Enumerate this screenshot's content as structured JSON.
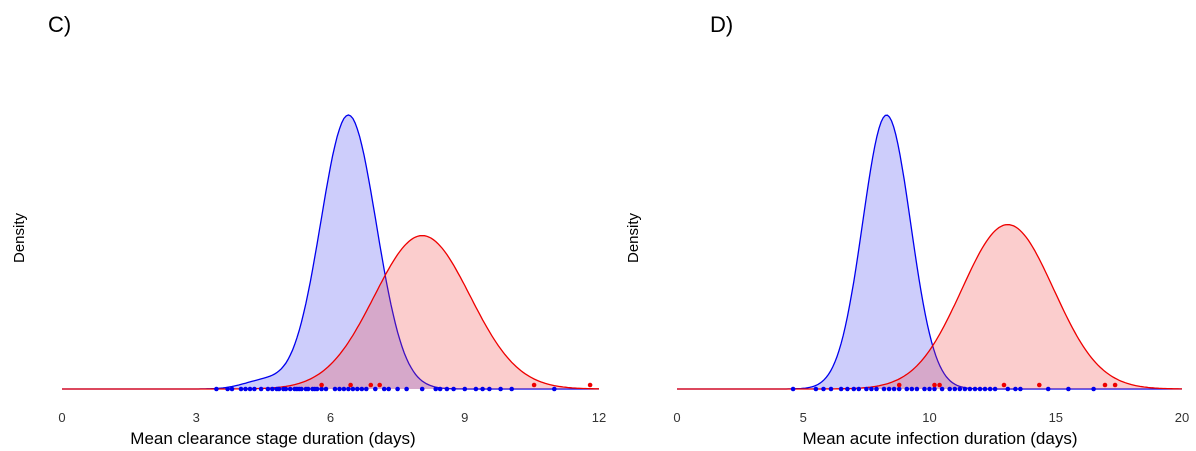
{
  "chart_data": [
    {
      "panel": "C)",
      "type": "area",
      "xlabel": "Mean clearance stage duration (days)",
      "ylabel": "Density",
      "xlim": [
        0,
        12
      ],
      "xticks": [
        0,
        3,
        6,
        9,
        12
      ],
      "grid": false,
      "series": [
        {
          "color": "#0000ee",
          "fill": "rgba(60,60,240,0.26)",
          "curve": "normal",
          "mean": 6.4,
          "sd": 0.62,
          "peak": 1.0,
          "shoulder": {
            "mean": 4.5,
            "sd": 0.45,
            "peak": 0.03
          },
          "points": [
            3.45,
            3.7,
            3.8,
            4.0,
            4.1,
            4.2,
            4.3,
            4.45,
            4.6,
            4.7,
            4.8,
            4.85,
            4.95,
            5.0,
            5.1,
            5.2,
            5.25,
            5.3,
            5.35,
            5.45,
            5.5,
            5.6,
            5.65,
            5.7,
            5.8,
            5.9,
            6.1,
            6.2,
            6.3,
            6.4,
            6.5,
            6.6,
            6.7,
            6.8,
            7.0,
            7.2,
            7.3,
            7.5,
            7.7,
            8.05,
            8.35,
            8.45,
            8.6,
            8.75,
            9.0,
            9.25,
            9.4,
            9.55,
            9.8,
            10.05,
            11.0
          ]
        },
        {
          "color": "#ee0000",
          "fill": "rgba(240,60,60,0.26)",
          "curve": "normal",
          "mean": 8.05,
          "sd": 1.07,
          "peak": 0.56,
          "points": [
            5.8,
            6.45,
            6.9,
            7.1,
            10.55,
            11.8
          ]
        }
      ]
    },
    {
      "panel": "D)",
      "type": "area",
      "xlabel": "Mean acute infection duration (days)",
      "ylabel": "Density",
      "xlim": [
        0,
        20
      ],
      "xticks": [
        0,
        5,
        10,
        15,
        20
      ],
      "grid": false,
      "series": [
        {
          "color": "#0000ee",
          "fill": "rgba(60,60,240,0.26)",
          "curve": "normal",
          "mean": 8.3,
          "sd": 0.95,
          "peak": 1.0,
          "points": [
            4.6,
            5.5,
            5.8,
            6.1,
            6.5,
            6.75,
            7.0,
            7.2,
            7.5,
            7.7,
            7.9,
            8.2,
            8.4,
            8.6,
            8.8,
            9.1,
            9.3,
            9.5,
            9.8,
            10.0,
            10.2,
            10.5,
            10.8,
            11.0,
            11.2,
            11.4,
            11.6,
            11.8,
            12.0,
            12.2,
            12.4,
            12.6,
            13.1,
            13.4,
            13.6,
            14.7,
            15.5,
            16.5
          ]
        },
        {
          "color": "#ee0000",
          "fill": "rgba(240,60,60,0.26)",
          "curve": "normal",
          "mean": 13.1,
          "sd": 1.82,
          "peak": 0.6,
          "points": [
            8.8,
            10.2,
            10.4,
            12.95,
            14.35,
            16.95,
            17.35
          ]
        }
      ]
    }
  ]
}
